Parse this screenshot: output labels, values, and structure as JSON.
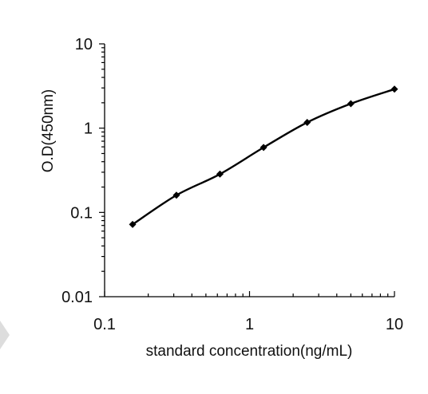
{
  "chart_data": {
    "type": "line",
    "x_scale": "log",
    "y_scale": "log",
    "xlim": [
      0.1,
      10
    ],
    "ylim": [
      0.01,
      10
    ],
    "x_ticks": [
      "0.1",
      "1",
      "10"
    ],
    "y_ticks": [
      "0.01",
      "0.1",
      "1",
      "10"
    ],
    "xlabel": "standard concentration(ng/mL)",
    "ylabel": "O.D(450nm)",
    "grid": false,
    "legend": "none",
    "marker": "diamond",
    "series": [
      {
        "x": [
          0.156,
          0.313,
          0.625,
          1.25,
          2.5,
          5,
          10
        ],
        "y": [
          0.072,
          0.16,
          0.285,
          0.59,
          1.17,
          1.95,
          2.9
        ]
      }
    ],
    "colors": {
      "line": "#000000",
      "marker": "#000000",
      "axis": "#000000"
    }
  }
}
